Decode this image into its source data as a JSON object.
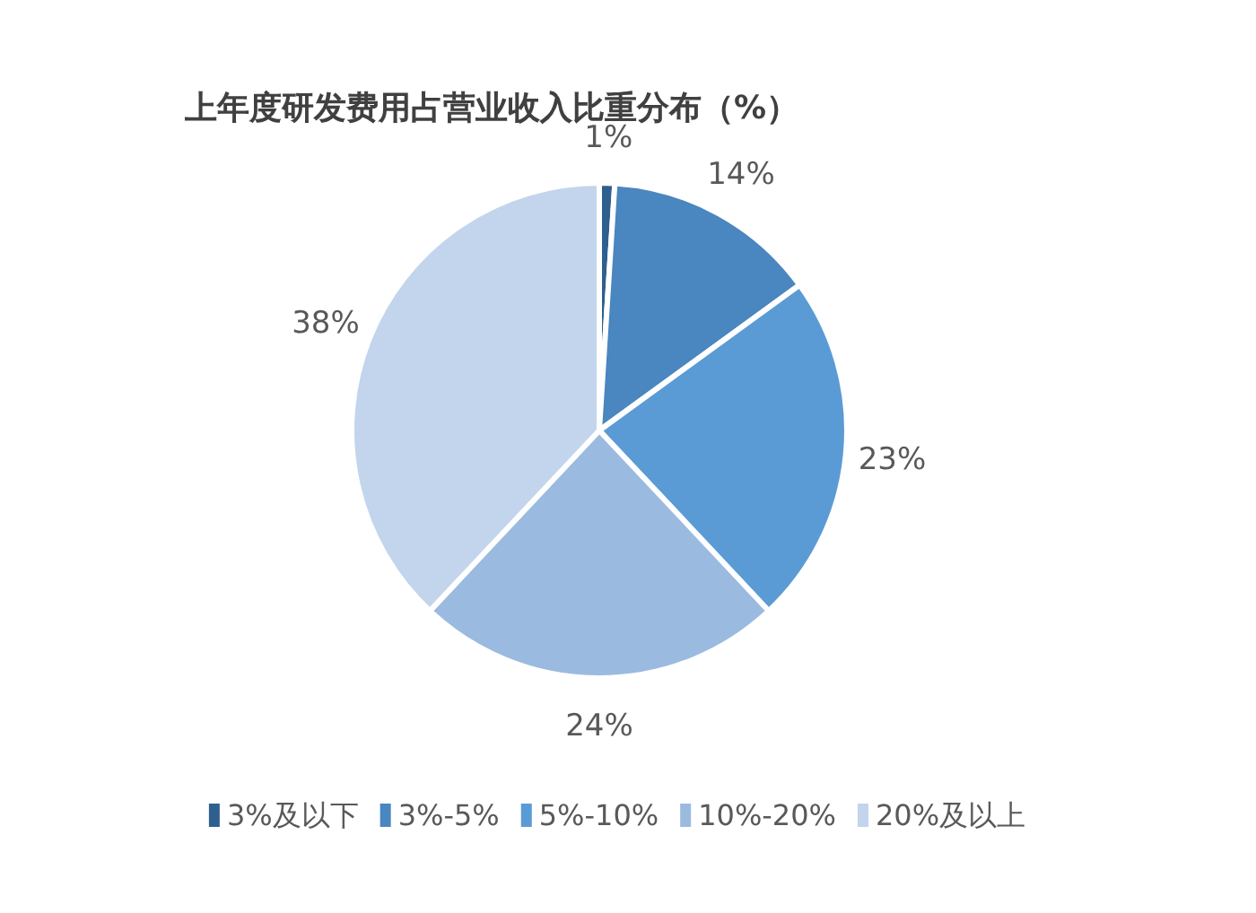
{
  "chart_data": {
    "type": "pie",
    "title": "上年度研发费用占营业收入比重分布（%）",
    "categories": [
      "3%及以下",
      "3%-5%",
      "5%-10%",
      "10%-20%",
      "20%及以上"
    ],
    "values": [
      1,
      14,
      23,
      24,
      38
    ],
    "value_labels": [
      "1%",
      "14%",
      "23%",
      "24%",
      "38%"
    ],
    "colors": [
      "#2f5f8f",
      "#4a86bf",
      "#5b9bd5",
      "#9bbae0",
      "#c3d5ec"
    ],
    "legend": "bottom"
  }
}
